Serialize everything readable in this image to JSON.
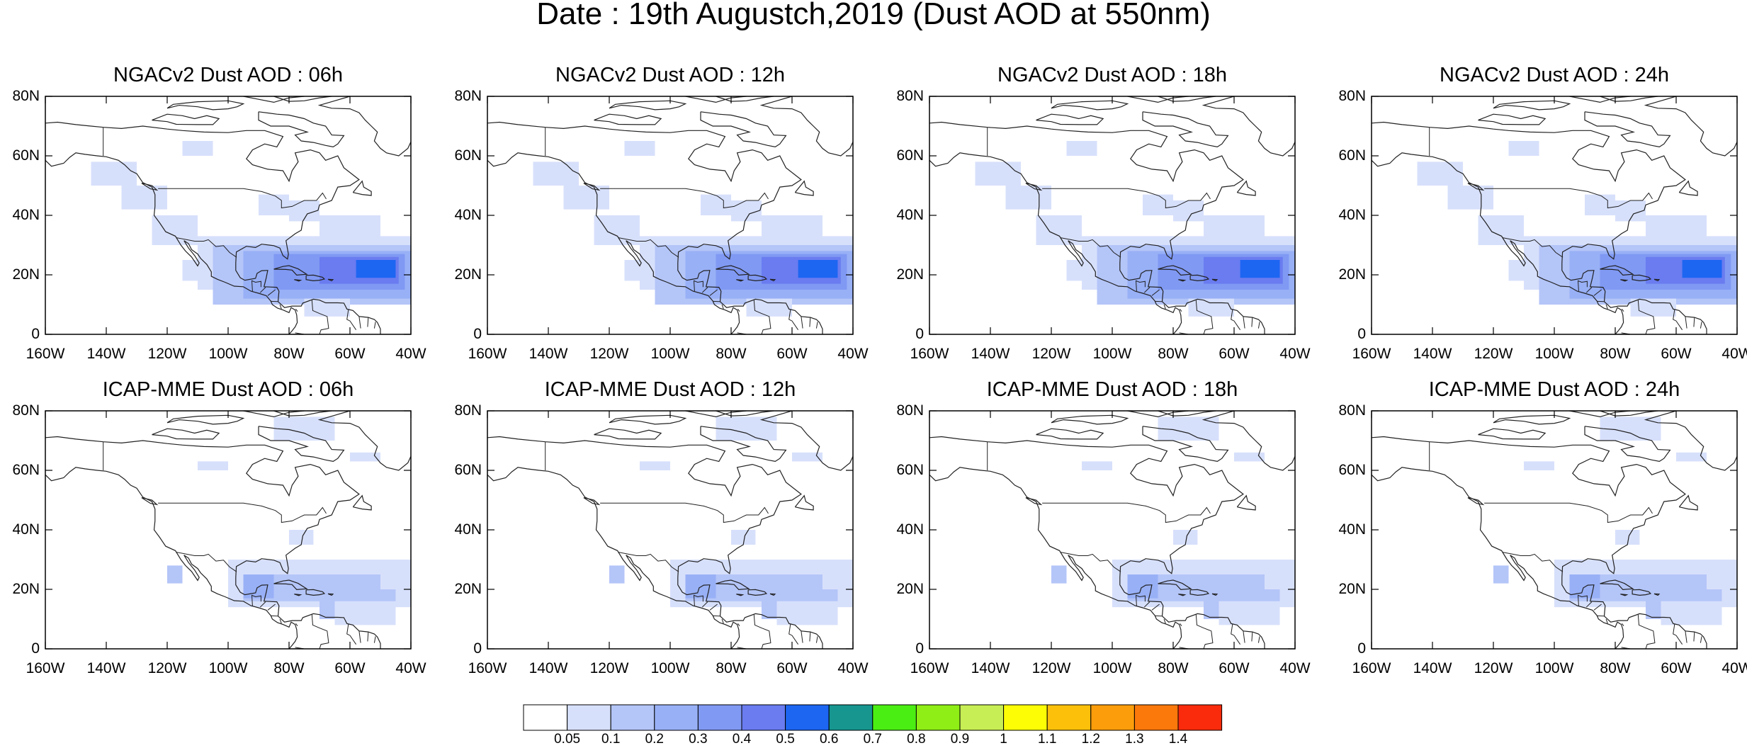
{
  "title": "Date : 19th Augustch,2019 (Dust AOD at 550nm)",
  "panel_titles": [
    "NGACv2 Dust AOD : 06h",
    "NGACv2 Dust AOD : 12h",
    "NGACv2 Dust AOD : 18h",
    "NGACv2 Dust AOD : 24h",
    "ICAP-MME Dust AOD : 06h",
    "ICAP-MME Dust AOD : 12h",
    "ICAP-MME Dust AOD : 18h",
    "ICAP-MME Dust AOD : 24h"
  ],
  "lat_labels": [
    "80N",
    "60N",
    "40N",
    "20N",
    "0"
  ],
  "lon_labels": [
    "160W",
    "140W",
    "120W",
    "100W",
    "80W",
    "60W",
    "40W"
  ],
  "colorbar": {
    "labels": [
      "0.05",
      "0.1",
      "0.2",
      "0.3",
      "0.4",
      "0.5",
      "0.6",
      "0.7",
      "0.8",
      "0.9",
      "1",
      "1.1",
      "1.2",
      "1.3",
      "1.4"
    ],
    "colors": [
      "#ffffff",
      "#d7e0fb",
      "#b4c5f8",
      "#98b0f6",
      "#8099f3",
      "#6a7cf0",
      "#1d66f2",
      "#16968f",
      "#4bee13",
      "#8eee15",
      "#c8ee55",
      "#fdfe06",
      "#fcc00b",
      "#fc9d0b",
      "#fb780b",
      "#fa2b0c"
    ]
  }
}
